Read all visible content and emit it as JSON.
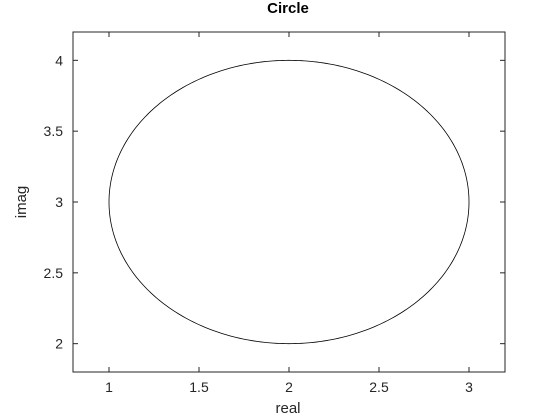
{
  "chart_data": {
    "type": "line",
    "title": "Circle",
    "xlabel": "real",
    "ylabel": "imag",
    "xlim": [
      0.8,
      3.2
    ],
    "ylim": [
      1.8,
      4.2
    ],
    "xticks": [
      1,
      1.5,
      2,
      2.5,
      3
    ],
    "xtick_labels": [
      "1",
      "1.5",
      "2",
      "2.5",
      "3"
    ],
    "yticks": [
      2,
      2.5,
      3,
      3.5,
      4
    ],
    "ytick_labels": [
      "2",
      "2.5",
      "3",
      "3.5",
      "4"
    ],
    "grid": false,
    "series": [
      {
        "shape": "circle",
        "center": [
          2,
          3
        ],
        "radius": 1,
        "color": "#000000"
      }
    ]
  }
}
